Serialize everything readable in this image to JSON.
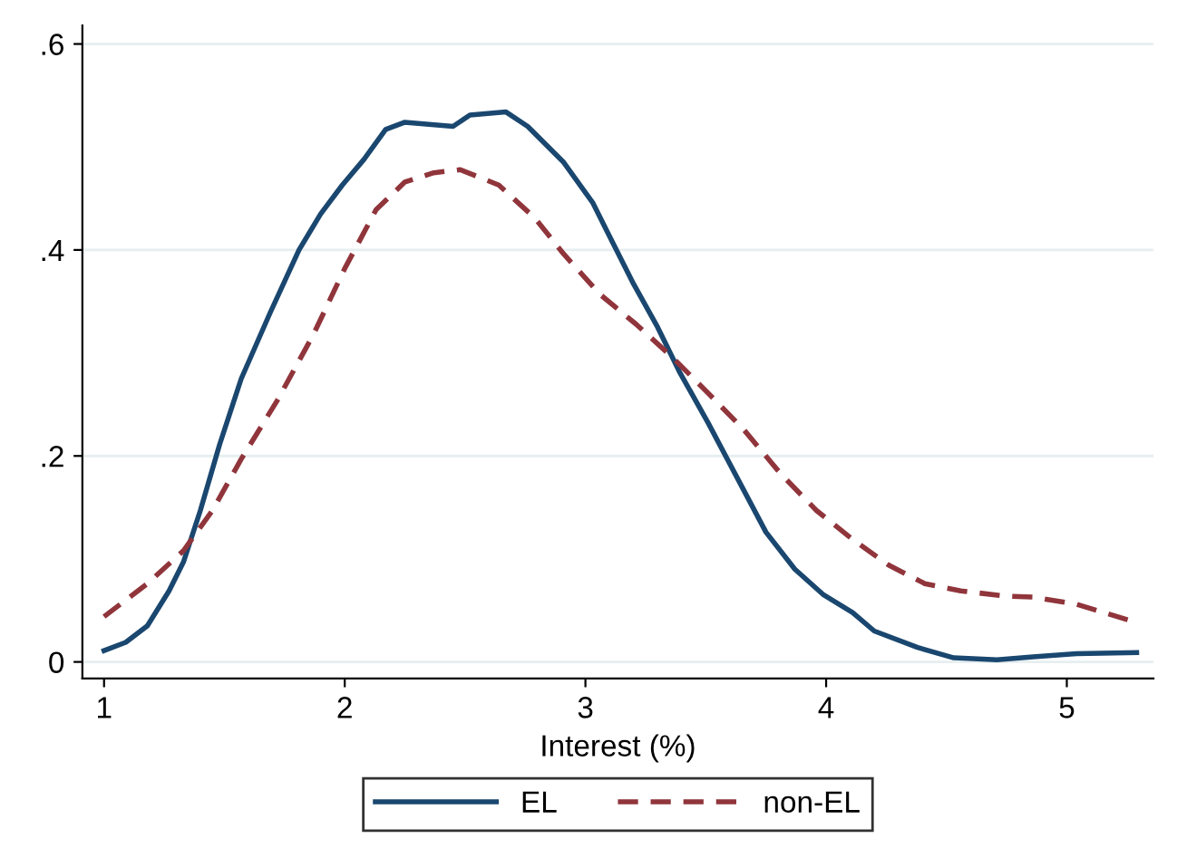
{
  "chart_data": {
    "type": "line",
    "xlabel": "Interest (%)",
    "xlim": [
      0.91,
      5.36
    ],
    "ylim": [
      -0.016,
      0.618
    ],
    "xticks": [
      1,
      2,
      3,
      4,
      5
    ],
    "yticks": [
      0,
      {
        "value": 0.2,
        "label": ".2"
      },
      {
        "value": 0.4,
        "label": ".4"
      },
      {
        "value": 0.6,
        "label": ".6"
      }
    ],
    "grid": "y",
    "legend": "bottom",
    "marker": "none",
    "series": [
      {
        "name": "EL",
        "color": "#1a476f",
        "line_style": "solid",
        "x": [
          1.0,
          1.09,
          1.18,
          1.27,
          1.33,
          1.4,
          1.48,
          1.57,
          1.69,
          1.81,
          1.9,
          1.99,
          2.08,
          2.17,
          2.25,
          2.35,
          2.45,
          2.52,
          2.67,
          2.76,
          2.91,
          3.03,
          3.12,
          3.2,
          3.3,
          3.39,
          3.51,
          3.63,
          3.75,
          3.87,
          3.99,
          4.11,
          4.2,
          4.38,
          4.53,
          4.71,
          4.86,
          5.04,
          5.29
        ],
        "values": [
          0.011,
          0.019,
          0.035,
          0.069,
          0.097,
          0.147,
          0.211,
          0.275,
          0.339,
          0.4,
          0.435,
          0.463,
          0.488,
          0.517,
          0.524,
          0.522,
          0.52,
          0.531,
          0.534,
          0.52,
          0.485,
          0.446,
          0.404,
          0.367,
          0.325,
          0.282,
          0.232,
          0.179,
          0.126,
          0.09,
          0.065,
          0.048,
          0.03,
          0.014,
          0.004,
          0.002,
          0.005,
          0.008,
          0.009
        ]
      },
      {
        "name": "non-EL",
        "color": "#90353b",
        "line_style": "dashed",
        "x": [
          1.0,
          1.18,
          1.33,
          1.45,
          1.57,
          1.72,
          1.87,
          2.0,
          2.13,
          2.25,
          2.37,
          2.48,
          2.64,
          2.79,
          2.91,
          3.06,
          3.21,
          3.36,
          3.51,
          3.66,
          3.81,
          3.96,
          4.11,
          4.26,
          4.41,
          4.56,
          4.74,
          4.86,
          5.04,
          5.28
        ],
        "values": [
          0.044,
          0.076,
          0.108,
          0.147,
          0.197,
          0.254,
          0.318,
          0.382,
          0.439,
          0.466,
          0.475,
          0.478,
          0.463,
          0.431,
          0.396,
          0.357,
          0.328,
          0.296,
          0.261,
          0.225,
          0.183,
          0.147,
          0.119,
          0.094,
          0.076,
          0.069,
          0.064,
          0.063,
          0.056,
          0.039
        ]
      }
    ]
  }
}
